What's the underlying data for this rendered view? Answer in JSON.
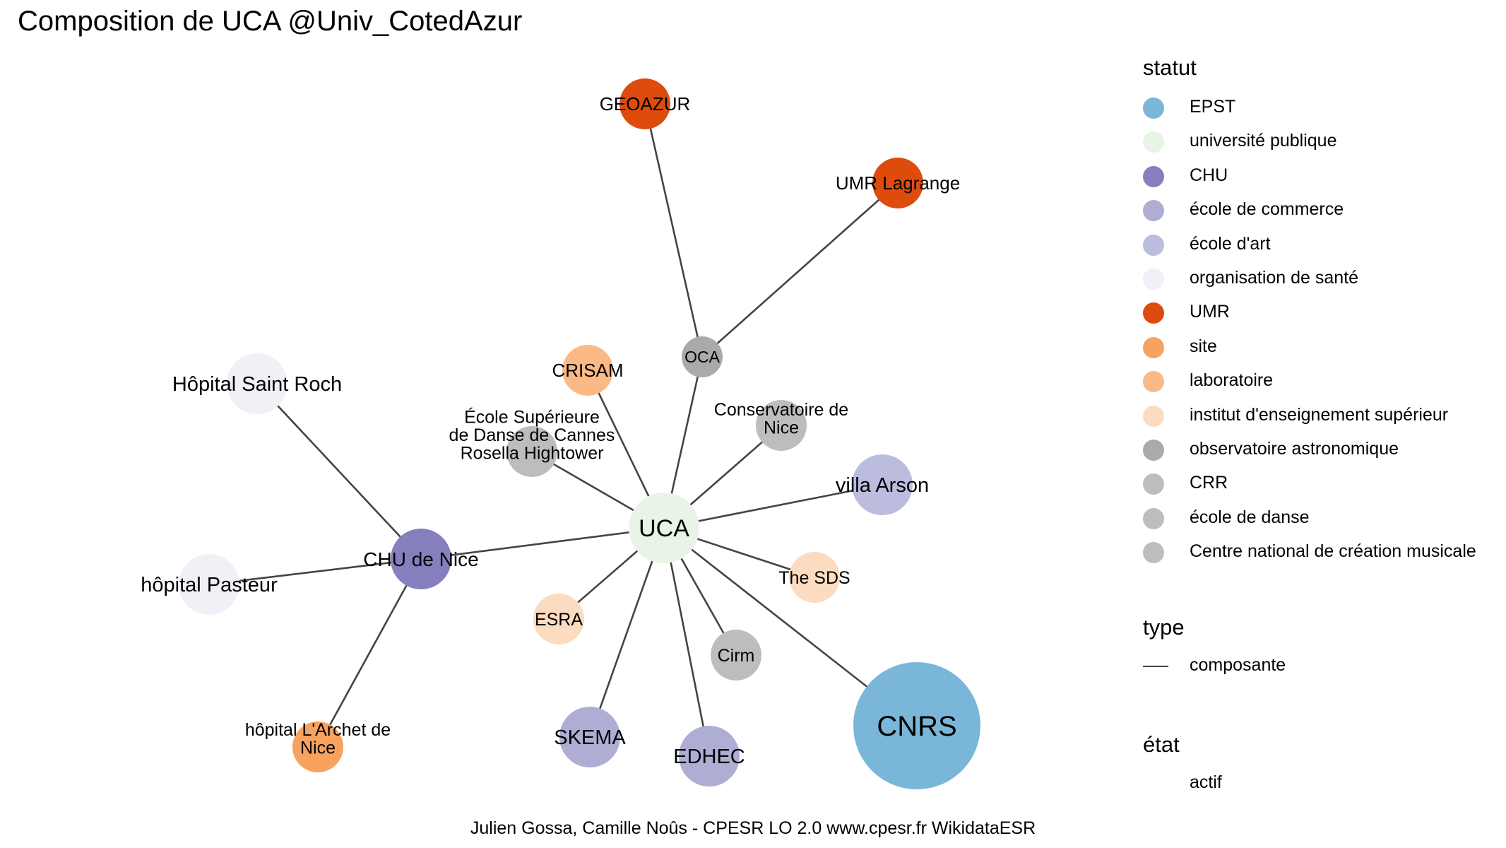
{
  "title": "Composition de UCA @Univ_CotedAzur",
  "caption": "Julien Gossa, Camille Noûs - CPESR LO 2.0 www.cpesr.fr WikidataESR",
  "colors": {
    "EPST": "#7ab6d8",
    "université publique": "#e8f4e5",
    "CHU": "#857fbd",
    "école de commerce": "#aeaed4",
    "école d'art": "#bcbcde",
    "organisation de santé": "#f1f0f7",
    "UMR": "#dd4b0d",
    "site": "#f8a25f",
    "laboratoire": "#fbb985",
    "institut d'enseignement supérieur": "#fcdcc0",
    "observatoire astronomique": "#aaaaaa",
    "CRR": "#bdbdbd",
    "école de danse": "#bdbdbd",
    "Centre national de création musicale": "#bdbdbd",
    "edge": "#444444"
  },
  "legend": {
    "statut": {
      "title": "statut",
      "items": [
        "EPST",
        "université publique",
        "CHU",
        "école de commerce",
        "école d'art",
        "organisation de santé",
        "UMR",
        "site",
        "laboratoire",
        "institut d'enseignement supérieur",
        "observatoire astronomique",
        "CRR",
        "école de danse",
        "Centre national de création musicale"
      ]
    },
    "type": {
      "title": "type",
      "items": [
        "composante"
      ]
    },
    "etat": {
      "title": "état",
      "items": [
        "actif"
      ]
    }
  },
  "nodes": [
    {
      "id": "uca",
      "label": "UCA",
      "statut": "université publique"
    },
    {
      "id": "cnrs",
      "label": "CNRS",
      "statut": "EPST"
    },
    {
      "id": "chu",
      "label": "CHU de Nice",
      "statut": "CHU"
    },
    {
      "id": "oca",
      "label": "OCA",
      "statut": "observatoire astronomique"
    },
    {
      "id": "geoazur",
      "label": "GEOAZUR",
      "statut": "UMR"
    },
    {
      "id": "lagrange",
      "label": "UMR Lagrange",
      "statut": "UMR"
    },
    {
      "id": "crisam",
      "label": "CRISAM",
      "statut": "laboratoire"
    },
    {
      "id": "danse",
      "label": "École Supérieure\nde Danse de Cannes\nRosella Hightower",
      "statut": "école de danse"
    },
    {
      "id": "conservatoire",
      "label": "Conservatoire de\nNice",
      "statut": "CRR"
    },
    {
      "id": "arson",
      "label": "villa Arson",
      "statut": "école d'art"
    },
    {
      "id": "sds",
      "label": "The SDS",
      "statut": "institut d'enseignement supérieur"
    },
    {
      "id": "cirm",
      "label": "Cirm",
      "statut": "Centre national de création musicale"
    },
    {
      "id": "edhec",
      "label": "EDHEC",
      "statut": "école de commerce"
    },
    {
      "id": "skema",
      "label": "SKEMA",
      "statut": "école de commerce"
    },
    {
      "id": "esra",
      "label": "ESRA",
      "statut": "institut d'enseignement supérieur"
    },
    {
      "id": "stroch",
      "label": "Hôpital Saint Roch",
      "statut": "organisation de santé"
    },
    {
      "id": "pasteur",
      "label": "hôpital Pasteur",
      "statut": "organisation de santé"
    },
    {
      "id": "archet",
      "label": "hôpital L'Archet de\nNice",
      "statut": "site"
    }
  ],
  "edges": [
    [
      "uca",
      "cnrs"
    ],
    [
      "uca",
      "chu"
    ],
    [
      "uca",
      "oca"
    ],
    [
      "oca",
      "geoazur"
    ],
    [
      "oca",
      "lagrange"
    ],
    [
      "uca",
      "crisam"
    ],
    [
      "uca",
      "danse"
    ],
    [
      "uca",
      "conservatoire"
    ],
    [
      "uca",
      "arson"
    ],
    [
      "uca",
      "sds"
    ],
    [
      "uca",
      "cirm"
    ],
    [
      "uca",
      "edhec"
    ],
    [
      "uca",
      "skema"
    ],
    [
      "uca",
      "esra"
    ],
    [
      "chu",
      "stroch"
    ],
    [
      "chu",
      "pasteur"
    ],
    [
      "chu",
      "archet"
    ]
  ]
}
